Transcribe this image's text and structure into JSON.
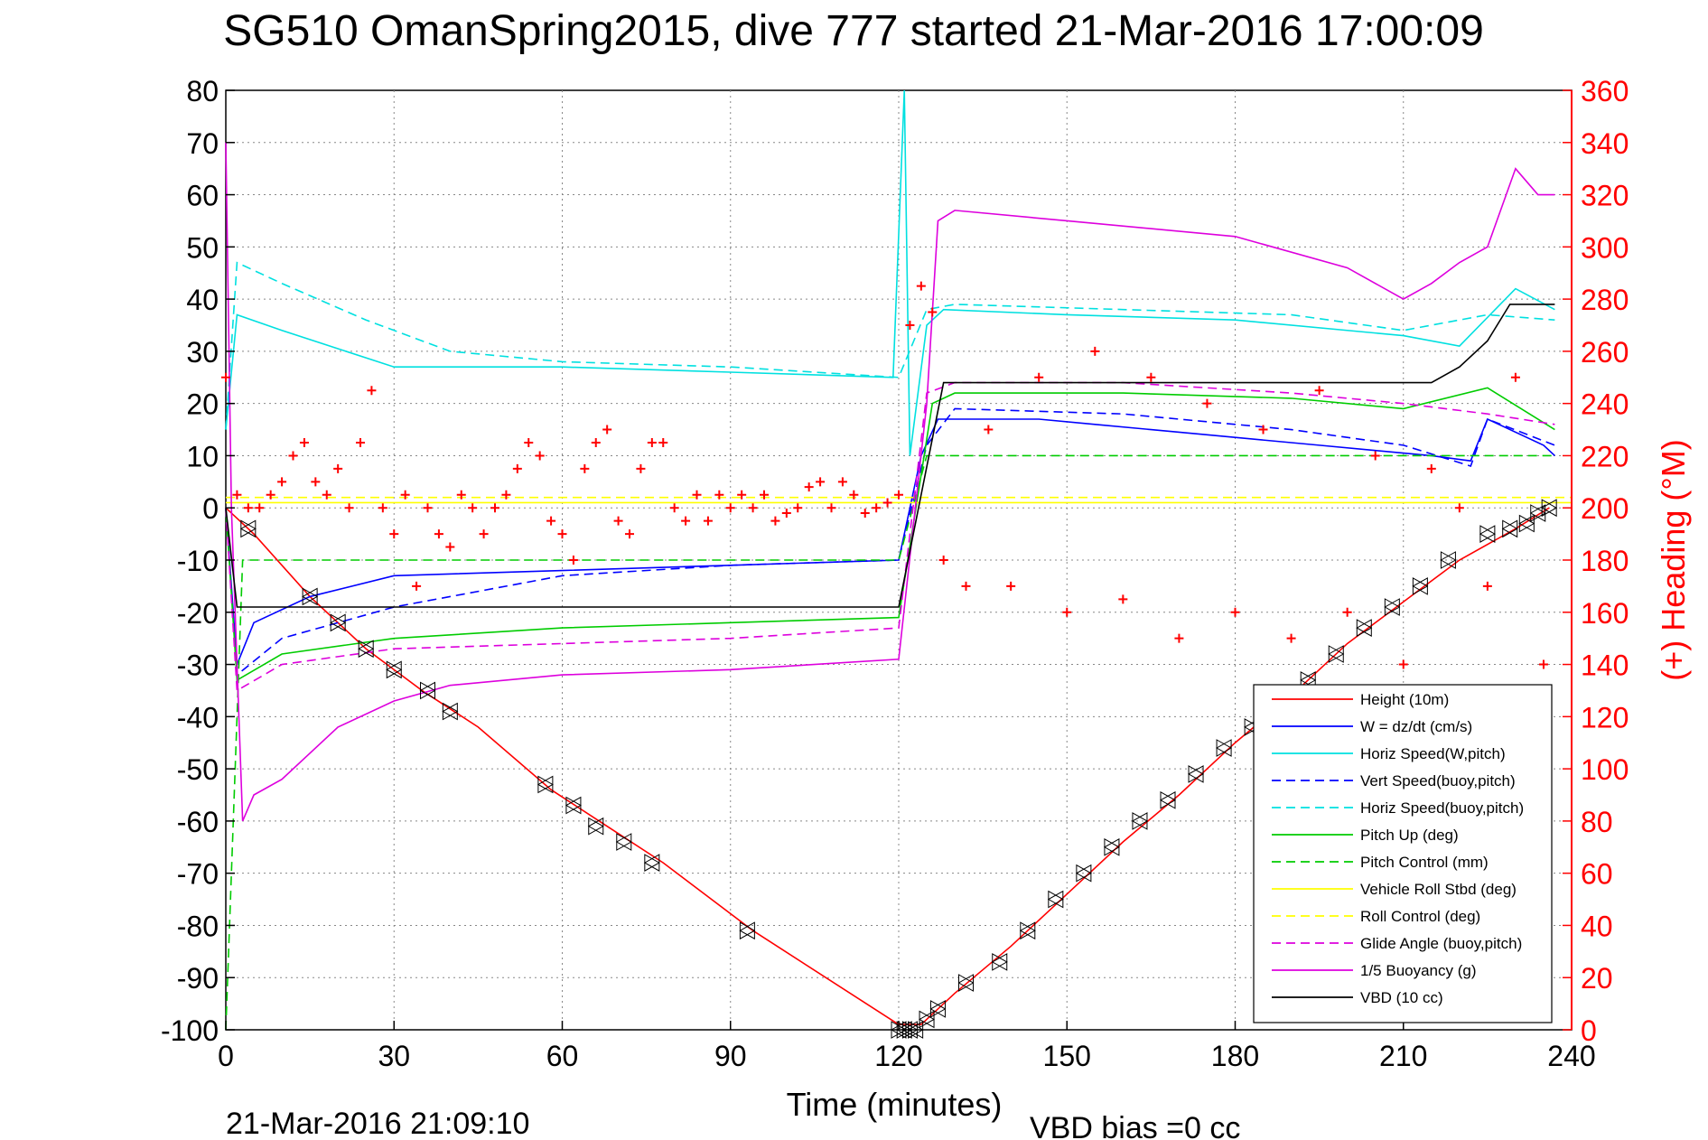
{
  "chart_data": {
    "type": "line",
    "title": "SG510 OmanSpring2015, dive 777 started 21-Mar-2016 17:00:09",
    "xlabel": "Time (minutes)",
    "ylabel_left": "",
    "ylabel_right": "(+) Heading (°M)",
    "footer_left": "21-Mar-2016 21:09:10",
    "footer_center": "VBD bias =0 cc",
    "xlim": [
      0,
      240
    ],
    "ylim_left": [
      -100,
      80
    ],
    "ylim_right": [
      0,
      360
    ],
    "x_ticks": [
      "0",
      "30",
      "60",
      "90",
      "120",
      "150",
      "180",
      "210",
      "240"
    ],
    "y_ticks_left": [
      "80",
      "70",
      "60",
      "50",
      "40",
      "30",
      "20",
      "10",
      "0",
      "-10",
      "-20",
      "-30",
      "-40",
      "-50",
      "-60",
      "-70",
      "-80",
      "-90",
      "-100"
    ],
    "y_ticks_right": [
      "360",
      "340",
      "320",
      "300",
      "280",
      "260",
      "240",
      "220",
      "200",
      "180",
      "160",
      "140",
      "120",
      "100",
      "80",
      "60",
      "40",
      "20",
      "0"
    ],
    "grid": true,
    "legend_position": "bottom-right",
    "series": [
      {
        "name": "Height (10m)",
        "color": "#ff0000",
        "style": "solid",
        "axis": "left",
        "x": [
          0,
          5,
          15,
          25,
          35,
          45,
          58,
          68,
          78,
          94,
          120,
          124,
          130,
          140,
          150,
          160,
          170,
          180,
          190,
          200,
          210,
          220,
          230,
          236
        ],
        "y": [
          0,
          -5,
          -17,
          -27,
          -35,
          -42,
          -54,
          -61,
          -68,
          -81,
          -99,
          -99,
          -93,
          -84,
          -74,
          -64,
          -55,
          -45,
          -36,
          -26,
          -18,
          -10,
          -4,
          0
        ]
      },
      {
        "name": "W = dz/dt (cm/s)",
        "color": "#0000ff",
        "style": "solid",
        "axis": "left",
        "x": [
          0,
          2,
          5,
          15,
          30,
          60,
          90,
          120,
          124,
          127,
          135,
          145,
          155,
          165,
          175,
          185,
          195,
          205,
          215,
          222,
          225,
          235,
          237
        ],
        "y": [
          0,
          -30,
          -22,
          -17,
          -13,
          -12,
          -11,
          -10,
          10,
          17,
          17,
          17,
          16,
          15,
          14,
          13,
          12,
          11,
          10,
          9,
          17,
          12,
          10
        ]
      },
      {
        "name": "Horiz Speed(W,pitch)",
        "color": "#00e0e0",
        "style": "solid",
        "axis": "left",
        "x": [
          0,
          2,
          10,
          30,
          60,
          90,
          119,
          121,
          122,
          125,
          128,
          150,
          180,
          210,
          220,
          230,
          237
        ],
        "y": [
          15,
          37,
          34,
          27,
          27,
          26,
          25,
          80,
          10,
          35,
          38,
          37,
          36,
          33,
          31,
          42,
          38
        ]
      },
      {
        "name": "Vert Speed(buoy,pitch)",
        "color": "#0000ff",
        "style": "dashed",
        "axis": "left",
        "x": [
          0,
          2,
          10,
          30,
          60,
          90,
          120,
          125,
          130,
          160,
          190,
          210,
          222,
          225,
          237
        ],
        "y": [
          0,
          -32,
          -25,
          -19,
          -13,
          -11,
          -10,
          12,
          19,
          18,
          15,
          12,
          8,
          17,
          12
        ]
      },
      {
        "name": "Horiz Speed(buoy,pitch)",
        "color": "#00e0e0",
        "style": "dashed",
        "axis": "left",
        "x": [
          0,
          2,
          10,
          25,
          40,
          60,
          90,
          120,
          125,
          130,
          160,
          190,
          210,
          225,
          237
        ],
        "y": [
          15,
          47,
          43,
          36,
          30,
          28,
          27,
          25,
          38,
          39,
          38,
          37,
          34,
          37,
          36
        ]
      },
      {
        "name": "Pitch Up (deg)",
        "color": "#00cc00",
        "style": "solid",
        "axis": "left",
        "x": [
          0,
          2,
          10,
          30,
          60,
          90,
          120,
          126,
          130,
          160,
          190,
          210,
          225,
          237
        ],
        "y": [
          0,
          -33,
          -28,
          -25,
          -23,
          -22,
          -21,
          20,
          22,
          22,
          21,
          19,
          23,
          15
        ]
      },
      {
        "name": "Pitch Control (mm)",
        "color": "#00cc00",
        "style": "dashed",
        "axis": "left",
        "x": [
          0,
          3,
          120,
          125,
          237
        ],
        "y": [
          -100,
          -10,
          -10,
          10,
          10
        ]
      },
      {
        "name": "Vehicle Roll Stbd (deg)",
        "color": "#ffff00",
        "style": "solid",
        "axis": "left",
        "x": [
          0,
          240
        ],
        "y": [
          1,
          1
        ]
      },
      {
        "name": "Roll Control (deg)",
        "color": "#ffff00",
        "style": "dashed",
        "axis": "left",
        "x": [
          0,
          240
        ],
        "y": [
          2,
          2
        ]
      },
      {
        "name": "Glide Angle (buoy,pitch)",
        "color": "#dd00dd",
        "style": "dashed",
        "axis": "left",
        "x": [
          0,
          2,
          10,
          30,
          60,
          90,
          120,
          125,
          130,
          160,
          190,
          210,
          225,
          237
        ],
        "y": [
          0,
          -35,
          -30,
          -27,
          -26,
          -25,
          -23,
          22,
          24,
          24,
          22,
          20,
          18,
          16
        ]
      },
      {
        "name": "1/5 Buoyancy (g)",
        "color": "#dd00dd",
        "style": "solid",
        "axis": "left",
        "x": [
          0,
          1,
          3,
          5,
          10,
          20,
          30,
          40,
          60,
          90,
          120,
          125,
          127,
          130,
          150,
          180,
          200,
          210,
          215,
          220,
          225,
          230,
          234,
          237
        ],
        "y": [
          70,
          0,
          -60,
          -55,
          -52,
          -42,
          -37,
          -34,
          -32,
          -31,
          -29,
          20,
          55,
          57,
          55,
          52,
          46,
          40,
          43,
          47,
          50,
          65,
          60,
          60
        ]
      },
      {
        "name": "VBD (10 cc)",
        "color": "#000000",
        "style": "solid",
        "axis": "left",
        "x": [
          0,
          2,
          4,
          120,
          128,
          215,
          220,
          225,
          229,
          237
        ],
        "y": [
          0,
          -19,
          -19,
          -19,
          24,
          24,
          27,
          32,
          39,
          39
        ]
      }
    ],
    "heading_points": {
      "name": "(+) Heading (°M)",
      "color": "#ff0000",
      "marker": "+",
      "axis": "right",
      "x": [
        0,
        2,
        4,
        6,
        8,
        10,
        12,
        14,
        16,
        18,
        20,
        22,
        24,
        26,
        28,
        30,
        32,
        34,
        36,
        38,
        40,
        42,
        44,
        46,
        48,
        50,
        52,
        54,
        56,
        58,
        60,
        62,
        64,
        66,
        68,
        70,
        72,
        74,
        76,
        78,
        80,
        82,
        84,
        86,
        88,
        90,
        92,
        94,
        96,
        98,
        100,
        102,
        104,
        106,
        108,
        110,
        112,
        114,
        116,
        118,
        120,
        122,
        124,
        126,
        128,
        132,
        136,
        140,
        145,
        150,
        155,
        160,
        165,
        170,
        175,
        180,
        185,
        190,
        195,
        200,
        205,
        210,
        215,
        220,
        225,
        230,
        235
      ],
      "y": [
        250,
        205,
        200,
        200,
        205,
        210,
        220,
        225,
        210,
        205,
        215,
        200,
        225,
        245,
        200,
        190,
        205,
        170,
        200,
        190,
        185,
        205,
        200,
        190,
        200,
        205,
        215,
        225,
        220,
        195,
        190,
        180,
        215,
        225,
        230,
        195,
        190,
        215,
        225,
        225,
        200,
        195,
        205,
        195,
        205,
        200,
        205,
        200,
        205,
        195,
        198,
        200,
        208,
        210,
        200,
        210,
        205,
        198,
        200,
        202,
        205,
        270,
        285,
        275,
        180,
        170,
        230,
        170,
        250,
        160,
        260,
        165,
        250,
        150,
        240,
        160,
        230,
        150,
        245,
        160,
        220,
        140,
        215,
        200,
        170,
        250,
        140
      ]
    },
    "depth_markers": {
      "name": "Height (10m)",
      "color": "#000000",
      "x": [
        4,
        15,
        20,
        25,
        30,
        36,
        40,
        57,
        62,
        66,
        71,
        76,
        93,
        120,
        121,
        122,
        123,
        125,
        127,
        132,
        138,
        143,
        148,
        153,
        158,
        163,
        168,
        173,
        178,
        183,
        188,
        193,
        198,
        203,
        208,
        213,
        218,
        225,
        229,
        232,
        234,
        236
      ],
      "y": [
        -4,
        -17,
        -22,
        -27,
        -31,
        -35,
        -39,
        -53,
        -57,
        -61,
        -64,
        -68,
        -81,
        -100,
        -100,
        -100,
        -100,
        -98,
        -96,
        -91,
        -87,
        -81,
        -75,
        -70,
        -65,
        -60,
        -56,
        -51,
        -46,
        -42,
        -37,
        -33,
        -28,
        -23,
        -19,
        -15,
        -10,
        -5,
        -4,
        -3,
        -1,
        0
      ]
    }
  }
}
